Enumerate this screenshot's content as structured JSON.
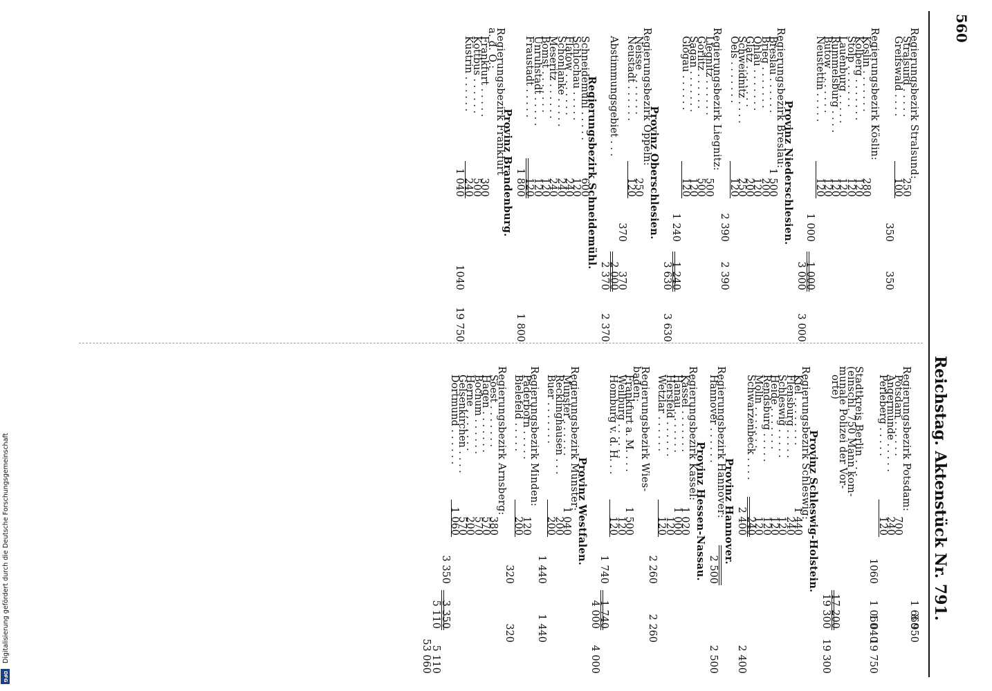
{
  "header": {
    "page_number": "560",
    "title": "Reichstag.  Aktenstück Nr. 791."
  },
  "footer": {
    "credit": "Digitalisierung gefördert durch die Deutsche Forschungsgemeinschaft",
    "logo_text": "DFG"
  },
  "left_column": [
    {
      "t": "region",
      "text": "Regierungsbezirk Stralsund:"
    },
    {
      "t": "row",
      "name": "Stralsund . . . . .",
      "n1": "250"
    },
    {
      "t": "row",
      "name": "Greifswald . . . .",
      "n1": "100",
      "rule": "n1"
    },
    {
      "t": "row",
      "name": "",
      "n2": "350",
      "n4": "350"
    },
    {
      "t": "gap"
    },
    {
      "t": "region",
      "text": "Regierungsbezirk Köslin:"
    },
    {
      "t": "row",
      "name": "Köslin . . . . . . .",
      "n1": "280"
    },
    {
      "t": "row",
      "name": "Kolberg . . . . . . .",
      "n1": "120"
    },
    {
      "t": "row",
      "name": "Stolp . . . . . . .",
      "n1": "120"
    },
    {
      "t": "row",
      "name": "Lauenburg . . . . .",
      "n1": "120"
    },
    {
      "t": "row",
      "name": "Rummelsburg . . . .",
      "n1": "120"
    },
    {
      "t": "row",
      "name": "Bütow . . . . . . .",
      "n1": "120"
    },
    {
      "t": "row",
      "name": "Neustettin . . . . .",
      "n1": "120",
      "rule": "n1"
    },
    {
      "t": "row",
      "name": "",
      "n2": "1 000",
      "n3": "1 000",
      "rule": "n3"
    },
    {
      "t": "row",
      "name": "",
      "n3": "3 000",
      "n5": "3 000",
      "dbl": "n3"
    },
    {
      "t": "head",
      "text": "Provinz Niederschlesien."
    },
    {
      "t": "region",
      "text": "Regierungsbezirk Breslau:"
    },
    {
      "t": "row",
      "name": "Breslau . . . . . .",
      "n1": "1 500"
    },
    {
      "t": "row",
      "name": "Brieg . . . . . . .",
      "n1": "200"
    },
    {
      "t": "row",
      "name": "Ohlau . . . . . . .",
      "n1": "120"
    },
    {
      "t": "row",
      "name": "Glatz . . . . . . .",
      "n1": "200"
    },
    {
      "t": "row",
      "name": "Schweidnitz . . . .",
      "n1": "250"
    },
    {
      "t": "row",
      "name": "Oels . . . . . . .",
      "n1": "120",
      "rule": "n1"
    },
    {
      "t": "row",
      "name": "",
      "n2": "2 390",
      "n4": "2 390"
    },
    {
      "t": "region",
      "text": "Regierungsbezirk Liegnitz:"
    },
    {
      "t": "row",
      "name": "Liegnitz . . . . . .",
      "n1": "500"
    },
    {
      "t": "row",
      "name": "Görlitz . . . . . .",
      "n1": "500"
    },
    {
      "t": "row",
      "name": "Sagan . . . . . . .",
      "n1": "120"
    },
    {
      "t": "row",
      "name": "Glogau . . . . . .",
      "n1": "120",
      "rule": "n1"
    },
    {
      "t": "row",
      "name": "",
      "n2": "1 240",
      "n3": "1 240",
      "rule": "n3"
    },
    {
      "t": "row",
      "name": "",
      "n3": "3 630",
      "n5": "3 630",
      "dbl": "n3"
    },
    {
      "t": "head",
      "text": "Provinz Oberschlesien."
    },
    {
      "t": "region",
      "text": "Regierungsbezirk Oppeln:"
    },
    {
      "t": "row",
      "name": "Neisse . . . . . . .",
      "n1": "250"
    },
    {
      "t": "row",
      "name": "Neustadt . . . . . .",
      "n1": "120",
      "rule": "n1"
    },
    {
      "t": "row",
      "name": "",
      "n2": "370",
      "n3": "370"
    },
    {
      "t": "row",
      "name": "Abstimmungsgebiet . . .",
      "n3": "2 000",
      "rule": "n3"
    },
    {
      "t": "row",
      "name": "",
      "n3": "2 370",
      "n5": "2 370",
      "dbl": "n3"
    },
    {
      "t": "head",
      "text": "Regierungsbezirk Schneidemühl."
    },
    {
      "t": "row",
      "name": "Schneidemühl . . . . .",
      "n1": "600"
    },
    {
      "t": "row",
      "name": "Schlochau . . . . .",
      "n1": "120"
    },
    {
      "t": "row",
      "name": "Flatow . . . . . . .",
      "n1": "240"
    },
    {
      "t": "row",
      "name": "Schönlanke . . . . .",
      "n1": "240"
    },
    {
      "t": "row",
      "name": "Meseritz . . . . . .",
      "n1": "240"
    },
    {
      "t": "row",
      "name": "Bomst . . . . . . .",
      "n1": "120"
    },
    {
      "t": "row",
      "name": "Unruhstadt . . . . .",
      "n1": "120"
    },
    {
      "t": "row",
      "name": "Fraustadt . . . . .",
      "n1": "120",
      "rule": "n1"
    },
    {
      "t": "row",
      "name": "",
      "n1": "1 800",
      "n5": "1 800",
      "dbl": "n1"
    },
    {
      "t": "head",
      "text": "Provinz Brandenburg."
    },
    {
      "t": "region",
      "text": "Regierungsbezirk Frankfurt"
    },
    {
      "t": "region",
      "text": "a. d. O.:"
    },
    {
      "t": "row",
      "name": "Frankfurt . . . . .",
      "n1": "300"
    },
    {
      "t": "row",
      "name": "Kottbus . . . . . .",
      "n1": "500"
    },
    {
      "t": "row",
      "name": "Küstrin . . . . . .",
      "n1": "240",
      "rule": "n1"
    },
    {
      "t": "row",
      "name": "",
      "n1": "1 040",
      "n4": "1040",
      "n5": "19 750"
    }
  ],
  "right_column": [
    {
      "t": "top",
      "n3": "1 660",
      "n4": "8 950"
    },
    {
      "t": "region",
      "text": "Regierungsbezirk Potsdam:"
    },
    {
      "t": "row",
      "name": "Potsdam . . . . . .",
      "n1": "700"
    },
    {
      "t": "row",
      "name": "Angermünde . . . . .",
      "n1": "240"
    },
    {
      "t": "row",
      "name": "Perleberg . . . . .",
      "n1": "120",
      "rule": "n1"
    },
    {
      "t": "row",
      "name": "",
      "n2": "1060",
      "n3": "1 060",
      "n4": "1 040",
      "n5": "19 750"
    },
    {
      "t": "gap"
    },
    {
      "t": "region",
      "text": "Stadtkreis Berlin . . ."
    },
    {
      "t": "region",
      "text": "(einschl. 750 Mann kom-"
    },
    {
      "t": "region",
      "text": "munale Polizei der Vor-"
    },
    {
      "t": "row",
      "name": "orte)",
      "n3": "17 200",
      "rule": "n3"
    },
    {
      "t": "row",
      "name": "",
      "n3": "19 300",
      "n5": "19 300",
      "dbl": "n3"
    },
    {
      "t": "head",
      "text": "Provinz Schleswig-Holstein."
    },
    {
      "t": "region",
      "text": "Regierungsbezirk Schleswig:"
    },
    {
      "t": "row",
      "name": "Kiel . . . . . . . .",
      "n1": "1 440"
    },
    {
      "t": "row",
      "name": "Flensburg . . . . .",
      "n1": "240"
    },
    {
      "t": "row",
      "name": "Schleswig . . . . .",
      "n1": "120"
    },
    {
      "t": "row",
      "name": "Heide . . . . . . .",
      "n1": "120"
    },
    {
      "t": "row",
      "name": "Rendsburg . . . . .",
      "n1": "120"
    },
    {
      "t": "row",
      "name": "Mölln . . . . . . .",
      "n1": "120"
    },
    {
      "t": "row",
      "name": "Schwarzenbeck . . . .",
      "n1": "240",
      "rule": "n1"
    },
    {
      "t": "row",
      "name": "",
      "n1": "2 400",
      "n5": "2 400",
      "dbl": "n1"
    },
    {
      "t": "head",
      "text": "Provinz Hannover."
    },
    {
      "t": "region",
      "text": "Regierungsbezirk Hannover:"
    },
    {
      "t": "row",
      "name": "Hannover . . . . . .",
      "n2": "2 500",
      "n5": "2 500",
      "dbl": "n2"
    },
    {
      "t": "head",
      "text": "Provinz Hessen-Nassau."
    },
    {
      "t": "region",
      "text": "Regierungsbezirk Kassel:"
    },
    {
      "t": "row",
      "name": "Kassel . . . . . . .",
      "n1": "1 020"
    },
    {
      "t": "row",
      "name": "Hanau . . . . . . .",
      "n1": "1 000"
    },
    {
      "t": "row",
      "name": "Hersfeld . . . . . .",
      "n1": "120"
    },
    {
      "t": "row",
      "name": "Wetzlar . . . . . .",
      "n1": "120",
      "rule": "n1"
    },
    {
      "t": "row",
      "name": "",
      "n2": "2 260",
      "n4": "2 260"
    },
    {
      "t": "region",
      "text": "Regierungsbezirk Wies-"
    },
    {
      "t": "region",
      "text": "baden:"
    },
    {
      "t": "row",
      "name": "Frankfurt a. M. . . .",
      "n1": "1 500"
    },
    {
      "t": "row",
      "name": "Weilburg . . . . . .",
      "n1": "120"
    },
    {
      "t": "row",
      "name": "Homburg v. d. H. . .",
      "n1": "120",
      "rule": "n1"
    },
    {
      "t": "row",
      "name": "",
      "n2": "1 740",
      "n3": "1 740",
      "rule": "n3"
    },
    {
      "t": "row",
      "name": "",
      "n3": "4 000",
      "n5": "4 000",
      "dbl": "n3"
    },
    {
      "t": "head",
      "text": "Provinz Westfalen."
    },
    {
      "t": "region",
      "text": "Regierungsbezirk Münster:"
    },
    {
      "t": "row",
      "name": "Münster . . . . . .",
      "n1": "1 040"
    },
    {
      "t": "row",
      "name": "Recklinghausen . . .",
      "n1": "200"
    },
    {
      "t": "row",
      "name": "Buer . . . . . . .",
      "n1": "200",
      "rule": "n1"
    },
    {
      "t": "row",
      "name": "",
      "n2": "1 440",
      "n4": "1 440"
    },
    {
      "t": "region",
      "text": "Regierungsbezirk Minden:"
    },
    {
      "t": "row",
      "name": "Paderborn . . . . .",
      "n1": "120"
    },
    {
      "t": "row",
      "name": "Bielefeld . . . . .",
      "n1": "200",
      "rule": "n1"
    },
    {
      "t": "row",
      "name": "",
      "n2": "320",
      "n4": "320"
    },
    {
      "t": "region",
      "text": "Regierungsbezirk Arnsberg:"
    },
    {
      "t": "row",
      "name": "Soest . . . . . . .",
      "n1": "380"
    },
    {
      "t": "row",
      "name": "Hagen . . . . . . .",
      "n1": "570"
    },
    {
      "t": "row",
      "name": "Bochum . . . . . .",
      "n1": "570"
    },
    {
      "t": "row",
      "name": "Herne . . . . . . .",
      "n1": "200"
    },
    {
      "t": "row",
      "name": "Gelsenkirchen . . . .",
      "n1": "570"
    },
    {
      "t": "row",
      "name": "Dortmund . . . . . .",
      "n1": "1 060",
      "rule": "n1"
    },
    {
      "t": "row",
      "name": "",
      "n2": "3 350",
      "n3": "3 350",
      "rule": "n3"
    },
    {
      "t": "row",
      "name": "",
      "n3": "5 110",
      "n5": "5 110",
      "dbl": "n3"
    },
    {
      "t": "row",
      "name": "",
      "n5": "53 060"
    }
  ]
}
